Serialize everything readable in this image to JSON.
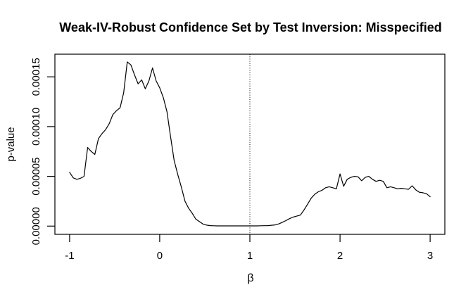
{
  "chart_data": {
    "type": "line",
    "title": "Weak-IV-Robust Confidence Set by Test Inversion: Misspecified",
    "xlabel": "β",
    "ylabel": "p-value",
    "x_ticks": [
      -1,
      0,
      1,
      2,
      3
    ],
    "x_tick_labels": [
      "-1",
      "0",
      "1",
      "2",
      "3"
    ],
    "y_ticks": [
      0,
      5e-05,
      0.0001,
      0.00015
    ],
    "y_tick_labels": [
      "0.00000",
      "0.00005",
      "0.00010",
      "0.00015"
    ],
    "xlim": [
      -1.163,
      3.163
    ],
    "ylim": [
      -8.3e-06,
      0.0001728
    ],
    "grid": false,
    "legend": null,
    "line_color": "#000000",
    "background_color": "#ffffff",
    "reference_line": {
      "orientation": "vertical",
      "x": 1,
      "style": "dotted",
      "color": "#000000"
    },
    "series": [
      {
        "name": "p-value curve",
        "x_start": -1,
        "x_step": 0.04,
        "values": [
          5.4e-05,
          4.85e-05,
          4.7e-05,
          4.8e-05,
          5e-05,
          7.9e-05,
          7.5e-05,
          7.2e-05,
          8.8e-05,
          9.3e-05,
          9.7e-05,
          0.000103,
          0.000112,
          0.000116,
          0.000119,
          0.000134,
          0.000165,
          0.000162,
          0.000152,
          0.000143,
          0.000147,
          0.000138,
          0.000146,
          0.000159,
          0.000146,
          0.000139,
          0.000129,
          0.000115,
          9e-05,
          6.6e-05,
          5.2e-05,
          3.9e-05,
          2.5e-05,
          1.8e-05,
          1.3e-05,
          7e-06,
          4.5e-06,
          2e-06,
          1e-06,
          5e-07,
          3e-07,
          2e-07,
          2e-07,
          2e-07,
          2e-07,
          2e-07,
          2e-07,
          2e-07,
          2e-07,
          2e-07,
          2e-07,
          2e-07,
          2e-07,
          3e-07,
          4e-07,
          5e-07,
          8e-07,
          1.2e-06,
          2.2e-06,
          3.8e-06,
          5.5e-06,
          7.5e-06,
          9e-06,
          1e-05,
          1.1e-05,
          1.6e-05,
          2.2e-05,
          2.8e-05,
          3.2e-05,
          3.45e-05,
          3.6e-05,
          3.85e-05,
          3.95e-05,
          3.85e-05,
          3.75e-05,
          5.25e-05,
          4e-05,
          4.7e-05,
          4.9e-05,
          5e-05,
          4.95e-05,
          4.55e-05,
          4.9e-05,
          5e-05,
          4.7e-05,
          4.5e-05,
          4.6e-05,
          4.5e-05,
          3.85e-05,
          3.95e-05,
          3.85e-05,
          3.75e-05,
          3.8e-05,
          3.75e-05,
          3.7e-05,
          4.05e-05,
          3.65e-05,
          3.4e-05,
          3.35e-05,
          3.25e-05,
          2.95e-05
        ]
      }
    ]
  }
}
